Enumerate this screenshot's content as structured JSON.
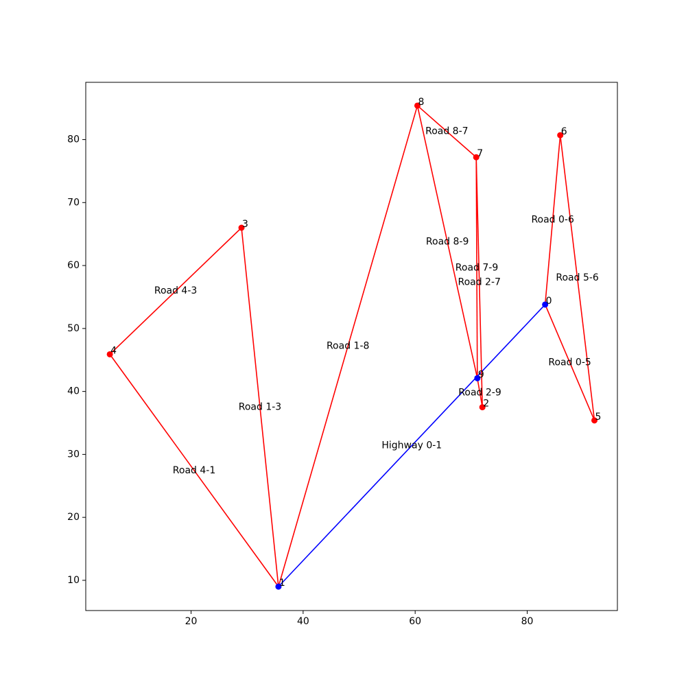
{
  "chart_data": {
    "type": "network",
    "title": "",
    "xlabel": "",
    "ylabel": "",
    "xlim": [
      1.2,
      96.1
    ],
    "ylim": [
      5.2,
      89.1
    ],
    "grid": false,
    "x_ticks": [
      20,
      40,
      60,
      80
    ],
    "y_ticks": [
      10,
      20,
      30,
      40,
      50,
      60,
      70,
      80
    ],
    "colors": {
      "highway": "#0000ff",
      "road": "#ff0000",
      "highway_node": "#0000ff",
      "road_node": "#ff0000"
    },
    "nodes": [
      {
        "id": "0",
        "x": 83.2,
        "y": 53.8,
        "type": "highway"
      },
      {
        "id": "1",
        "x": 35.6,
        "y": 9.0,
        "type": "highway"
      },
      {
        "id": "2",
        "x": 72.0,
        "y": 37.5,
        "type": "road"
      },
      {
        "id": "3",
        "x": 29.0,
        "y": 66.0,
        "type": "road"
      },
      {
        "id": "4",
        "x": 5.5,
        "y": 45.9,
        "type": "road"
      },
      {
        "id": "5",
        "x": 92.0,
        "y": 35.4,
        "type": "road"
      },
      {
        "id": "6",
        "x": 85.9,
        "y": 80.7,
        "type": "road"
      },
      {
        "id": "7",
        "x": 70.9,
        "y": 77.2,
        "type": "road"
      },
      {
        "id": "8",
        "x": 60.4,
        "y": 85.4,
        "type": "road"
      },
      {
        "id": "9",
        "x": 71.1,
        "y": 42.1,
        "type": "highway"
      }
    ],
    "edges": [
      {
        "from": "0",
        "to": "1",
        "label": "Highway 0-1",
        "type": "highway"
      },
      {
        "from": "0",
        "to": "5",
        "label": "Road 0-5",
        "type": "road"
      },
      {
        "from": "0",
        "to": "6",
        "label": "Road 0-6",
        "type": "road"
      },
      {
        "from": "1",
        "to": "3",
        "label": "Road 1-3",
        "type": "road"
      },
      {
        "from": "1",
        "to": "8",
        "label": "Road 1-8",
        "type": "road"
      },
      {
        "from": "2",
        "to": "7",
        "label": "Road 2-7",
        "type": "road"
      },
      {
        "from": "2",
        "to": "9",
        "label": "Road 2-9",
        "type": "road"
      },
      {
        "from": "4",
        "to": "1",
        "label": "Road 4-1",
        "type": "road"
      },
      {
        "from": "4",
        "to": "3",
        "label": "Road 4-3",
        "type": "road"
      },
      {
        "from": "5",
        "to": "6",
        "label": "Road 5-6",
        "type": "road"
      },
      {
        "from": "7",
        "to": "9",
        "label": "Road 7-9",
        "type": "road"
      },
      {
        "from": "8",
        "to": "7",
        "label": "Road 8-7",
        "type": "road"
      },
      {
        "from": "8",
        "to": "9",
        "label": "Road 8-9",
        "type": "road"
      }
    ]
  }
}
